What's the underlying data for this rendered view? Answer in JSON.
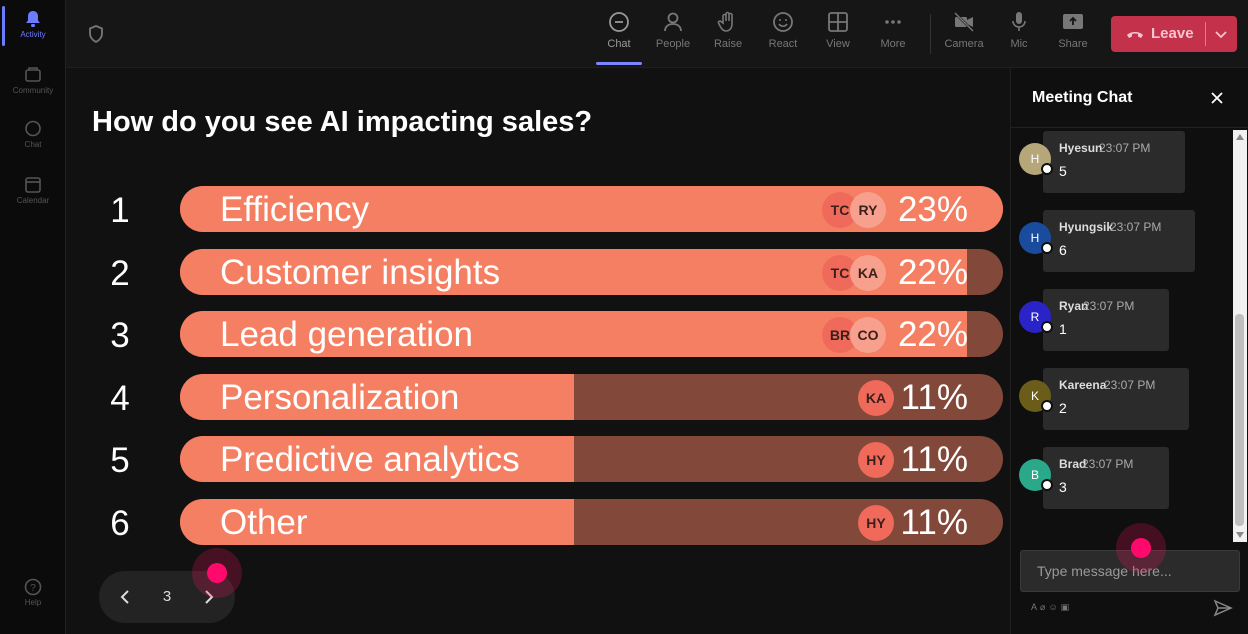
{
  "colors": {
    "bar_fill": "#f47f62",
    "bar_track": "#82483a",
    "leave_button": "#c4314b",
    "accent": "#7a86ff",
    "cursor_marker": "#ff0a6c"
  },
  "rail": {
    "items": [
      {
        "label": "Activity",
        "icon": "bell-icon",
        "active": true
      },
      {
        "label": "Community",
        "icon": "community-icon"
      },
      {
        "label": "Chat",
        "icon": "chat-icon"
      },
      {
        "label": "Calendar",
        "icon": "calendar-icon"
      },
      {
        "label": "Help",
        "icon": "help-icon"
      }
    ]
  },
  "topbar": {
    "shield_icon": "shield-icon",
    "buttons": [
      {
        "label": "Chat",
        "icon": "chat-icon",
        "active": true
      },
      {
        "label": "People",
        "icon": "person-icon"
      },
      {
        "label": "Raise",
        "icon": "hand-icon"
      },
      {
        "label": "React",
        "icon": "smile-icon"
      },
      {
        "label": "View",
        "icon": "grid-icon"
      },
      {
        "label": "More",
        "icon": "more-icon"
      },
      {
        "label": "Camera",
        "icon": "camera-off-icon"
      },
      {
        "label": "Mic",
        "icon": "mic-icon"
      },
      {
        "label": "Share",
        "icon": "share-icon"
      }
    ],
    "leave_label": "Leave"
  },
  "poll": {
    "question": "How do you see AI impacting sales?",
    "options": [
      {
        "number": "1",
        "label": "Efficiency",
        "percent": "23%",
        "share": 0.23,
        "avatars": [
          "TC",
          "RY"
        ]
      },
      {
        "number": "2",
        "label": "Customer insights",
        "percent": "22%",
        "share": 0.22,
        "avatars": [
          "TC",
          "KA"
        ]
      },
      {
        "number": "3",
        "label": "Lead generation",
        "percent": "22%",
        "share": 0.22,
        "avatars": [
          "BR",
          "CO"
        ]
      },
      {
        "number": "4",
        "label": "Personalization",
        "percent": "11%",
        "share": 0.11,
        "avatars": [
          "KA"
        ]
      },
      {
        "number": "5",
        "label": "Predictive analytics",
        "percent": "11%",
        "share": 0.11,
        "avatars": [
          "HY"
        ]
      },
      {
        "number": "6",
        "label": "Other",
        "percent": "11%",
        "share": 0.11,
        "avatars": [
          "HY"
        ]
      }
    ],
    "pager": {
      "page": "3"
    }
  },
  "chat": {
    "title": "Meeting Chat",
    "messages": [
      {
        "initial": "H",
        "author": "Hyesun",
        "time": "23:07 PM",
        "text": "5",
        "color": "#b5a77a"
      },
      {
        "initial": "H",
        "author": "Hyungsik",
        "time": "23:07 PM",
        "text": "6",
        "color": "#1a4c9e"
      },
      {
        "initial": "R",
        "author": "Ryan",
        "time": "23:07 PM",
        "text": "1",
        "color": "#2a24c8"
      },
      {
        "initial": "K",
        "author": "Kareena",
        "time": "23:07 PM",
        "text": "2",
        "color": "#6b5c1a"
      },
      {
        "initial": "B",
        "author": "Brad",
        "time": "23:07 PM",
        "text": "3",
        "color": "#2aa88a"
      }
    ],
    "compose_placeholder": "Type message here...",
    "format_icons": [
      "format-icon",
      "attach-icon",
      "emoji-icon",
      "gif-icon"
    ],
    "send_icon": "send-icon"
  }
}
